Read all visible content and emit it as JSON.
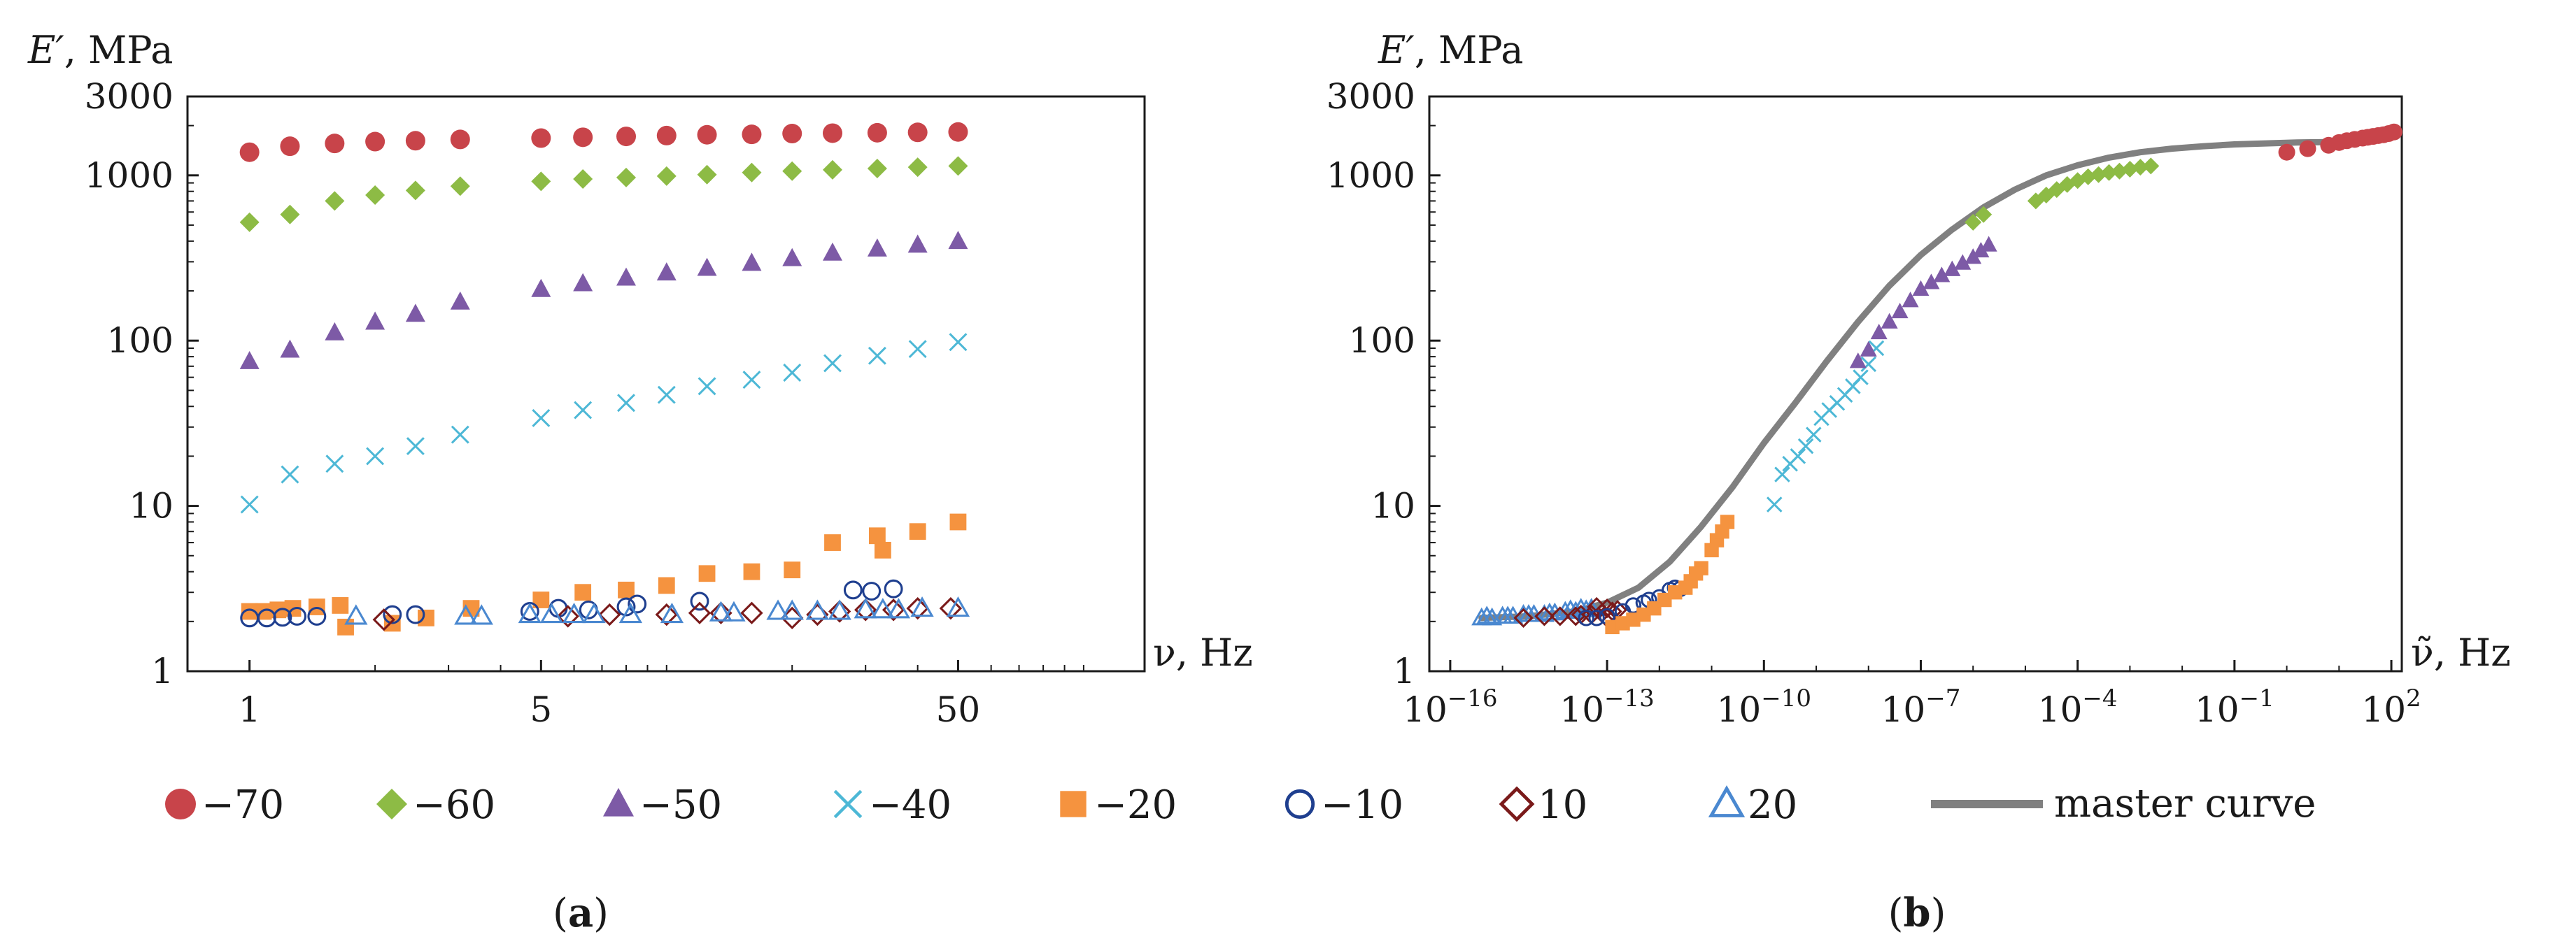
{
  "colors": {
    "-70": "#c8444a",
    "-60": "#8dbb45",
    "-50": "#7d5aa6",
    "-40": "#4db8d6",
    "-20": "#f5933f",
    "-10": "#1f3f8f",
    "10": "#7a1a1a",
    "20": "#4a88d0",
    "master": "#808080"
  },
  "legend": [
    {
      "key": "-70",
      "label": "−70",
      "marker": "circle"
    },
    {
      "key": "-60",
      "label": "−60",
      "marker": "diamond"
    },
    {
      "key": "-50",
      "label": "−50",
      "marker": "triangle"
    },
    {
      "key": "-40",
      "label": "−40",
      "marker": "cross"
    },
    {
      "key": "-20",
      "label": "−20",
      "marker": "square"
    },
    {
      "key": "-10",
      "label": "−10",
      "marker": "circle-open"
    },
    {
      "key": "10",
      "label": "10",
      "marker": "diamond-open"
    },
    {
      "key": "20",
      "label": "20",
      "marker": "triangle-open"
    },
    {
      "key": "master",
      "label": "master curve",
      "marker": "line"
    }
  ],
  "chart_data": [
    {
      "id": "a",
      "type": "scatter",
      "caption_letter": "a",
      "ylabel_sym": "E′",
      "ylabel_unit": ", MPa",
      "xlabel_sym": "ν",
      "xlabel_unit": ", Hz",
      "xscale": "log",
      "yscale": "log",
      "xlim": [
        0.71,
        140
      ],
      "ylim": [
        1,
        3000
      ],
      "xticks": [
        {
          "v": 1,
          "label": "1"
        },
        {
          "v": 5,
          "label": "5"
        },
        {
          "v": 50,
          "label": "50"
        }
      ],
      "yticks": [
        {
          "v": 1,
          "label": "1"
        },
        {
          "v": 10,
          "label": "10"
        },
        {
          "v": 100,
          "label": "100"
        },
        {
          "v": 1000,
          "label": "1000"
        },
        {
          "v": 3000,
          "label": "3000"
        }
      ],
      "series": [
        {
          "name": "-70",
          "marker": "circle",
          "x": [
            1,
            1.25,
            1.6,
            2,
            2.5,
            3.2,
            5,
            6.3,
            8,
            10,
            12.5,
            16,
            20,
            25,
            32,
            40,
            50
          ],
          "y": [
            1380,
            1500,
            1560,
            1600,
            1620,
            1650,
            1680,
            1700,
            1720,
            1740,
            1760,
            1770,
            1790,
            1800,
            1810,
            1820,
            1830
          ]
        },
        {
          "name": "-60",
          "marker": "diamond",
          "x": [
            1,
            1.25,
            1.6,
            2,
            2.5,
            3.2,
            5,
            6.3,
            8,
            10,
            12.5,
            16,
            20,
            25,
            32,
            40,
            50
          ],
          "y": [
            520,
            580,
            700,
            760,
            810,
            860,
            920,
            950,
            970,
            990,
            1010,
            1040,
            1060,
            1080,
            1100,
            1120,
            1140
          ]
        },
        {
          "name": "-50",
          "marker": "triangle",
          "x": [
            1,
            1.25,
            1.6,
            2,
            2.5,
            3.2,
            5,
            6.3,
            8,
            10,
            12.5,
            16,
            20,
            25,
            32,
            40,
            50
          ],
          "y": [
            75,
            88,
            112,
            130,
            145,
            172,
            205,
            222,
            240,
            258,
            275,
            295,
            315,
            340,
            360,
            380,
            400
          ]
        },
        {
          "name": "-40",
          "marker": "cross",
          "x": [
            1,
            1.25,
            1.6,
            2,
            2.5,
            3.2,
            5,
            6.3,
            8,
            10,
            12.5,
            16,
            20,
            25,
            32,
            40,
            50
          ],
          "y": [
            10.2,
            15.5,
            18,
            20,
            23,
            27,
            34,
            38,
            42,
            47,
            53,
            58,
            64,
            73,
            81,
            89,
            98
          ]
        },
        {
          "name": "-20",
          "marker": "square",
          "x": [
            1,
            1.08,
            1.17,
            1.27,
            1.45,
            1.65,
            1.7,
            2.2,
            2.65,
            3.4,
            5,
            6.3,
            8,
            10,
            12.5,
            16,
            20,
            25,
            32,
            33,
            40,
            50
          ],
          "y": [
            2.3,
            2.3,
            2.35,
            2.4,
            2.45,
            2.5,
            1.85,
            1.95,
            2.1,
            2.4,
            2.7,
            3,
            3.1,
            3.3,
            3.9,
            4,
            4.1,
            6,
            6.6,
            5.4,
            7,
            8
          ]
        },
        {
          "name": "-10",
          "marker": "circle-open",
          "x": [
            1,
            1.1,
            1.2,
            1.3,
            1.45,
            2.2,
            2.5,
            4.7,
            5.5,
            6.5,
            8,
            8.5,
            12,
            28,
            31,
            35
          ],
          "y": [
            2.1,
            2.1,
            2.12,
            2.15,
            2.15,
            2.2,
            2.2,
            2.3,
            2.4,
            2.35,
            2.45,
            2.55,
            2.65,
            3.1,
            3.05,
            3.15
          ]
        },
        {
          "name": "10",
          "marker": "diamond-open",
          "x": [
            2.1,
            5.8,
            7.3,
            10,
            12,
            13.5,
            16,
            20,
            23,
            26,
            30,
            35,
            40,
            48
          ],
          "y": [
            2.05,
            2.15,
            2.2,
            2.2,
            2.25,
            2.25,
            2.25,
            2.1,
            2.2,
            2.3,
            2.35,
            2.35,
            2.4,
            2.4
          ]
        },
        {
          "name": "20",
          "marker": "triangle-open",
          "x": [
            1.8,
            3.3,
            3.6,
            4.7,
            5.3,
            6,
            6.7,
            8.2,
            10.3,
            13.5,
            14.5,
            18.5,
            20,
            23,
            26,
            30,
            33,
            36,
            41,
            50
          ],
          "y": [
            2.15,
            2.15,
            2.15,
            2.2,
            2.2,
            2.2,
            2.2,
            2.2,
            2.2,
            2.25,
            2.25,
            2.3,
            2.3,
            2.3,
            2.3,
            2.35,
            2.35,
            2.35,
            2.4,
            2.4
          ]
        }
      ]
    },
    {
      "id": "b",
      "type": "scatter",
      "caption_letter": "b",
      "ylabel_sym": "E′",
      "ylabel_unit": ", MPa",
      "xlabel_sym": "ν̃",
      "xlabel_unit": ", Hz",
      "xscale": "log",
      "yscale": "log",
      "xlim_exp": [
        -16.4,
        2.2
      ],
      "ylim": [
        1,
        3000
      ],
      "xticks": [
        {
          "exp": -16,
          "base": "10",
          "sup": "−16"
        },
        {
          "exp": -13,
          "base": "10",
          "sup": "−13"
        },
        {
          "exp": -10,
          "base": "10",
          "sup": "−10"
        },
        {
          "exp": -7,
          "base": "10",
          "sup": "−7"
        },
        {
          "exp": -4,
          "base": "10",
          "sup": "−4"
        },
        {
          "exp": -1,
          "base": "10",
          "sup": "−1"
        },
        {
          "exp": 2,
          "base": "10",
          "sup": "2"
        }
      ],
      "yticks": [
        {
          "v": 1,
          "label": "1"
        },
        {
          "v": 10,
          "label": "10"
        },
        {
          "v": 100,
          "label": "100"
        },
        {
          "v": 1000,
          "label": "1000"
        },
        {
          "v": 3000,
          "label": "3000"
        }
      ],
      "series": [
        {
          "name": "20",
          "marker": "triangle-open",
          "x_exp": [
            -15.4,
            -15.2,
            -15.0,
            -14.8,
            -14.6,
            -14.4,
            -14.2,
            -14.0,
            -13.8,
            -13.6,
            -13.4,
            -13.3,
            -15.3,
            -14.9,
            -14.5,
            -14.1,
            -13.7,
            -13.5
          ],
          "y": [
            2.1,
            2.1,
            2.15,
            2.15,
            2.2,
            2.2,
            2.2,
            2.25,
            2.3,
            2.3,
            2.35,
            2.4,
            2.15,
            2.15,
            2.2,
            2.25,
            2.35,
            2.4
          ]
        },
        {
          "name": "10",
          "marker": "diamond-open",
          "x_exp": [
            -14.6,
            -14.2,
            -13.9,
            -13.6,
            -13.3,
            -13.1,
            -12.9,
            -13.0,
            -13.2,
            -13.5,
            -13.0,
            -12.8
          ],
          "y": [
            2.1,
            2.15,
            2.15,
            2.15,
            2.2,
            2.25,
            2.3,
            2.4,
            2.45,
            2.2,
            2.1,
            2.35
          ]
        },
        {
          "name": "-10",
          "marker": "circle-open",
          "x_exp": [
            -13.4,
            -13.2,
            -13.0,
            -12.7,
            -12.5,
            -12.3,
            -12.2,
            -12.0,
            -11.8,
            -11.7,
            -11.6
          ],
          "y": [
            2.1,
            2.1,
            2.15,
            2.3,
            2.5,
            2.6,
            2.7,
            2.8,
            3.1,
            3.2,
            3.15
          ]
        },
        {
          "name": "-20",
          "marker": "square",
          "x_exp": [
            -12.9,
            -12.7,
            -12.5,
            -12.3,
            -12.1,
            -11.9,
            -11.7,
            -11.4,
            -11.2,
            -11.0,
            -10.9,
            -10.8,
            -10.7,
            -11.5,
            -11.3
          ],
          "y": [
            1.85,
            1.95,
            2.05,
            2.2,
            2.4,
            2.7,
            3.0,
            3.5,
            4.2,
            5.4,
            6.2,
            7.0,
            8.0,
            3.2,
            3.9
          ]
        },
        {
          "name": "-40",
          "marker": "cross",
          "x_exp": [
            -9.8,
            -9.65,
            -9.5,
            -9.35,
            -9.2,
            -9.05,
            -8.9,
            -8.75,
            -8.6,
            -8.45,
            -8.3,
            -8.15,
            -8.0,
            -7.85
          ],
          "y": [
            10.2,
            15.5,
            18,
            20,
            23,
            27,
            34,
            38,
            42,
            47,
            53,
            60,
            72,
            90
          ]
        },
        {
          "name": "-50",
          "marker": "triangle",
          "x_exp": [
            -8.2,
            -8.0,
            -7.8,
            -7.6,
            -7.4,
            -7.2,
            -7.0,
            -6.8,
            -6.6,
            -6.4,
            -6.2,
            -6.0,
            -5.85,
            -5.7
          ],
          "y": [
            75,
            88,
            112,
            130,
            150,
            175,
            205,
            225,
            248,
            270,
            295,
            320,
            350,
            380
          ]
        },
        {
          "name": "-60",
          "marker": "diamond",
          "x_exp": [
            -6.0,
            -5.8,
            -4.8,
            -4.6,
            -4.4,
            -4.2,
            -4.0,
            -3.8,
            -3.6,
            -3.4,
            -3.2,
            -3.0,
            -2.8,
            -2.6
          ],
          "y": [
            520,
            580,
            700,
            760,
            820,
            880,
            930,
            980,
            1010,
            1040,
            1060,
            1090,
            1120,
            1140
          ]
        },
        {
          "name": "-70",
          "marker": "circle",
          "x_exp": [
            0.0,
            0.4,
            0.8,
            1.0,
            1.15,
            1.3,
            1.45,
            1.55,
            1.65,
            1.75,
            1.85,
            1.95,
            2.05
          ],
          "y": [
            1380,
            1450,
            1520,
            1580,
            1620,
            1650,
            1680,
            1700,
            1720,
            1740,
            1760,
            1790,
            1830
          ]
        }
      ],
      "master_curve": {
        "x_exp": [
          -15.4,
          -14.5,
          -13.6,
          -13.0,
          -12.4,
          -11.8,
          -11.2,
          -10.6,
          -10.0,
          -9.4,
          -8.8,
          -8.2,
          -7.6,
          -7.0,
          -6.4,
          -5.8,
          -5.2,
          -4.6,
          -4.0,
          -3.4,
          -2.8,
          -2.2,
          -1.6,
          -1.0,
          -0.4,
          0.2,
          0.8
        ],
        "y": [
          2.1,
          2.15,
          2.3,
          2.6,
          3.2,
          4.6,
          7.5,
          13,
          24,
          42,
          75,
          130,
          215,
          330,
          470,
          640,
          820,
          1000,
          1150,
          1280,
          1380,
          1450,
          1500,
          1540,
          1560,
          1580,
          1590
        ]
      }
    }
  ],
  "captions": {
    "a": "(a)",
    "b": "(b)",
    "open": "(",
    "close": ")"
  }
}
